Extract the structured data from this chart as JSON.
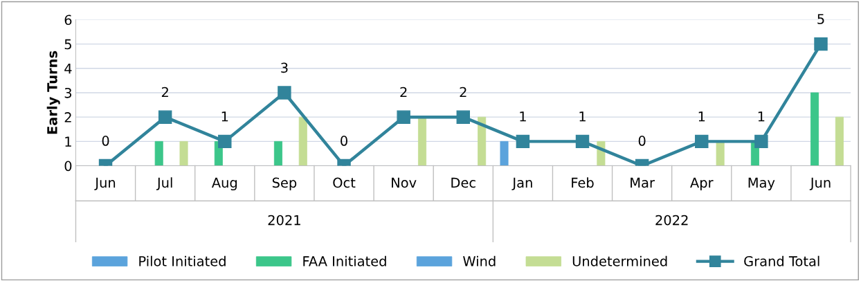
{
  "chart_data": {
    "type": "bar",
    "ylabel": "Early Turns",
    "categories": [
      "Jun",
      "Jul",
      "Aug",
      "Sep",
      "Oct",
      "Nov",
      "Dec",
      "Jan",
      "Feb",
      "Mar",
      "Apr",
      "May",
      "Jun"
    ],
    "series": [
      {
        "name": "Pilot Initiated",
        "color": "#5ba3dc",
        "values": [
          0,
          0,
          0,
          0,
          0,
          0,
          0,
          1,
          0,
          0,
          0,
          0,
          0
        ]
      },
      {
        "name": "FAA Initiated",
        "color": "#3cc68a",
        "values": [
          0,
          1,
          1,
          1,
          0,
          0,
          0,
          0,
          0,
          0,
          0,
          1,
          3
        ]
      },
      {
        "name": "Wind",
        "color": "#5ba3dc",
        "values": [
          0,
          0,
          0,
          0,
          0,
          0,
          0,
          0,
          0,
          0,
          0,
          0,
          0
        ]
      },
      {
        "name": "Undetermined",
        "color": "#c4dd94",
        "values": [
          0,
          1,
          0,
          2,
          0,
          2,
          2,
          0,
          1,
          0,
          1,
          0,
          2
        ]
      },
      {
        "name": "Grand Total",
        "type": "line",
        "color": "#31849b",
        "values": [
          0,
          2,
          1,
          3,
          0,
          2,
          2,
          1,
          1,
          0,
          1,
          1,
          5
        ],
        "data_labels": true,
        "marker": "square"
      }
    ],
    "annotations": [
      "2021",
      "2022"
    ],
    "ylim": [
      0,
      6
    ],
    "yticks": [
      0,
      1,
      2,
      3,
      4,
      5,
      6
    ],
    "grid": "y",
    "legend": "bottom"
  }
}
